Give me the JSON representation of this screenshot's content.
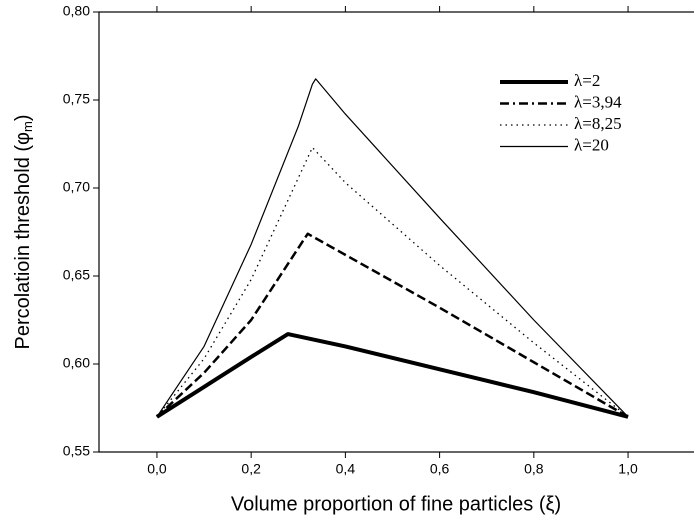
{
  "chart_data": {
    "type": "line",
    "xlabel": "Volume proportion of fine particles (ξ)",
    "ylabel": [
      "Percolatioin threshold (φ",
      "m",
      ")"
    ],
    "xlim": [
      -0.123,
      1.14
    ],
    "ylim": [
      0.55,
      0.8
    ],
    "xticks": [
      {
        "value": 0,
        "label": "0,0"
      },
      {
        "value": 0.2,
        "label": "0,2"
      },
      {
        "value": 0.4,
        "label": "0,4"
      },
      {
        "value": 0.6,
        "label": "0,6"
      },
      {
        "value": 0.8,
        "label": "0,8"
      },
      {
        "value": 1,
        "label": "1,0"
      }
    ],
    "yticks": [
      {
        "value": 0.55,
        "label": "0,55"
      },
      {
        "value": 0.6,
        "label": "0,60"
      },
      {
        "value": 0.65,
        "label": "0,65"
      },
      {
        "value": 0.7,
        "label": "0,70"
      },
      {
        "value": 0.75,
        "label": "0,75"
      },
      {
        "value": 0.8,
        "label": "0,80"
      }
    ],
    "series": [
      {
        "name": "λ=2",
        "color": "#000000",
        "style": "thick",
        "x": [
          0,
          0.1,
          0.2,
          0.278,
          0.4,
          0.6,
          0.8,
          1.0
        ],
        "values": [
          0.57,
          0.587,
          0.604,
          0.617,
          0.61,
          0.597,
          0.584,
          0.57
        ]
      },
      {
        "name": "λ=3,94",
        "color": "#000000",
        "style": "dash",
        "x": [
          0,
          0.1,
          0.2,
          0.32,
          0.4,
          0.6,
          0.8,
          1.0
        ],
        "values": [
          0.57,
          0.595,
          0.625,
          0.674,
          0.662,
          0.632,
          0.601,
          0.57
        ]
      },
      {
        "name": "λ=8,25",
        "color": "#000000",
        "style": "dot",
        "x": [
          0,
          0.1,
          0.2,
          0.33,
          0.4,
          0.6,
          0.8,
          1.0
        ],
        "values": [
          0.57,
          0.603,
          0.648,
          0.723,
          0.703,
          0.656,
          0.612,
          0.57
        ]
      },
      {
        "name": "λ=20",
        "color": "#000000",
        "style": "thin",
        "x": [
          0,
          0.1,
          0.2,
          0.3,
          0.33,
          0.337,
          0.4,
          0.6,
          0.8,
          1.0
        ],
        "values": [
          0.57,
          0.61,
          0.668,
          0.735,
          0.759,
          0.762,
          0.742,
          0.683,
          0.625,
          0.57
        ]
      }
    ]
  }
}
